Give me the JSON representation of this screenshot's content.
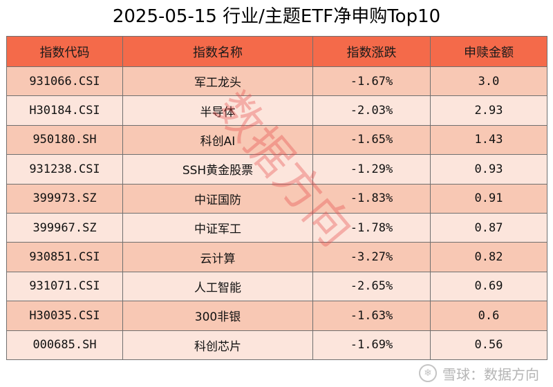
{
  "title": "2025-05-15 行业/主题ETF净申购Top10",
  "table": {
    "headers": [
      "指数代码",
      "指数名称",
      "指数涨跌",
      "申赎金额"
    ],
    "rows": [
      {
        "code": "931066.CSI",
        "name": "军工龙头",
        "change": "-1.67%",
        "amount": "3.0"
      },
      {
        "code": "H30184.CSI",
        "name": "半导体",
        "change": "-2.03%",
        "amount": "2.93"
      },
      {
        "code": "950180.SH",
        "name": "科创AI",
        "change": "-1.65%",
        "amount": "1.43"
      },
      {
        "code": "931238.CSI",
        "name": "SSH黄金股票",
        "change": "-1.29%",
        "amount": "0.93"
      },
      {
        "code": "399973.SZ",
        "name": "中证国防",
        "change": "-1.83%",
        "amount": "0.91"
      },
      {
        "code": "399967.SZ",
        "name": "中证军工",
        "change": "-1.78%",
        "amount": "0.87"
      },
      {
        "code": "930851.CSI",
        "name": "云计算",
        "change": "-3.27%",
        "amount": "0.82"
      },
      {
        "code": "931071.CSI",
        "name": "人工智能",
        "change": "-2.65%",
        "amount": "0.69"
      },
      {
        "code": "H30035.CSI",
        "name": "300非银",
        "change": "-1.63%",
        "amount": "0.6"
      },
      {
        "code": "000685.SH",
        "name": "科创芯片",
        "change": "-1.69%",
        "amount": "0.56"
      }
    ]
  },
  "watermark": "数据方向",
  "footer": {
    "brand": "雪球：数据方向",
    "icon": "snowball-logo-icon"
  },
  "colors": {
    "header": "#f46a4a",
    "row_dark": "#f8c8b4",
    "row_light": "#fce5dc",
    "watermark": "#e64646"
  }
}
